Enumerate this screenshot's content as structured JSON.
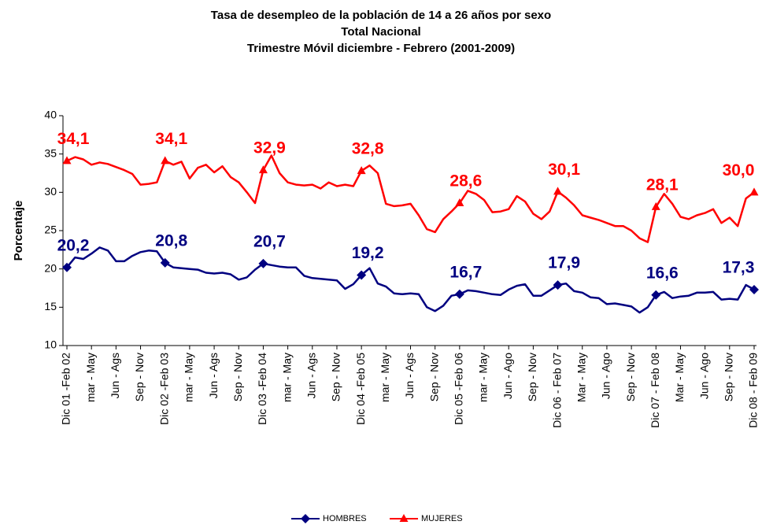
{
  "chart_data": {
    "type": "line",
    "title": "Tasa de desempleo de la población de 14 a 26 años por sexo",
    "subtitle": [
      "Total Nacional",
      "Trimestre Móvil diciembre - Febrero (2001-2009)"
    ],
    "y_label": "Porcentaje",
    "ylim": [
      10,
      40
    ],
    "yticks": [
      10,
      15,
      20,
      25,
      30,
      35,
      40
    ],
    "grid": false,
    "legend": "bottom",
    "categories": [
      "Dic 01 -Feb 02",
      null,
      null,
      "mar - May",
      null,
      null,
      "Jun - Ags",
      null,
      null,
      "Sep - Nov",
      null,
      null,
      "Dic 02 -Feb 03",
      null,
      null,
      "mar - May",
      null,
      null,
      "Jun - Ags",
      null,
      null,
      "Sep - Nov",
      null,
      null,
      "Dic 03 -Feb 04",
      null,
      null,
      "mar - May",
      null,
      null,
      "Jun - Ags",
      null,
      null,
      "Sep - Nov",
      null,
      null,
      "Dic 04 -Feb 05",
      null,
      null,
      "mar - May",
      null,
      null,
      "Jun - Ags",
      null,
      null,
      "Sep - Nov",
      null,
      null,
      "Dic 05 -Feb 06",
      null,
      null,
      "mar - May",
      null,
      null,
      "Jun - Ago",
      null,
      null,
      "Sep - Nov",
      null,
      null,
      "Dic 06 - Feb 07",
      null,
      null,
      "Mar - May",
      null,
      null,
      "Jun - Ago",
      null,
      null,
      "Sep - Nov",
      null,
      null,
      "Dic 07 - Feb 08",
      null,
      null,
      "Mar - May",
      null,
      null,
      "Jun - Ago",
      null,
      null,
      "Sep - Nov",
      null,
      null,
      "Dic 08 - Feb 09"
    ],
    "series": [
      {
        "name": "HOMBRES",
        "color": "#000080",
        "marker": "diamond",
        "values": [
          20.2,
          21.5,
          21.3,
          22.0,
          22.8,
          22.4,
          21.0,
          21.0,
          21.7,
          22.2,
          22.4,
          22.3,
          20.8,
          20.2,
          20.1,
          20.0,
          19.9,
          19.5,
          19.4,
          19.5,
          19.3,
          18.6,
          18.9,
          19.9,
          20.7,
          20.5,
          20.3,
          20.2,
          20.2,
          19.1,
          18.8,
          18.7,
          18.6,
          18.5,
          17.4,
          18.0,
          19.2,
          20.1,
          18.1,
          17.7,
          16.8,
          16.7,
          16.8,
          16.7,
          15.0,
          14.5,
          15.2,
          16.5,
          16.7,
          17.2,
          17.1,
          16.9,
          16.7,
          16.6,
          17.3,
          17.8,
          18.0,
          16.5,
          16.5,
          17.2,
          17.9,
          18.1,
          17.1,
          16.9,
          16.3,
          16.2,
          15.4,
          15.5,
          15.3,
          15.1,
          14.3,
          15.0,
          16.6,
          17.0,
          16.2,
          16.4,
          16.5,
          16.9,
          16.9,
          17.0,
          16.0,
          16.1,
          16.0,
          17.9,
          17.3
        ],
        "value_labels": [
          "20,2",
          null,
          null,
          null,
          null,
          null,
          null,
          null,
          null,
          null,
          null,
          null,
          "20,8",
          null,
          null,
          null,
          null,
          null,
          null,
          null,
          null,
          null,
          null,
          null,
          "20,7",
          null,
          null,
          null,
          null,
          null,
          null,
          null,
          null,
          null,
          null,
          null,
          "19,2",
          null,
          null,
          null,
          null,
          null,
          null,
          null,
          null,
          null,
          null,
          null,
          "16,7",
          null,
          null,
          null,
          null,
          null,
          null,
          null,
          null,
          null,
          null,
          null,
          "17,9",
          null,
          null,
          null,
          null,
          null,
          null,
          null,
          null,
          null,
          null,
          null,
          "16,6",
          null,
          null,
          null,
          null,
          null,
          null,
          null,
          null,
          null,
          null,
          null,
          "17,3"
        ]
      },
      {
        "name": "MUJERES",
        "color": "#ff0000",
        "marker": "triangle",
        "values": [
          34.1,
          34.6,
          34.3,
          33.6,
          33.9,
          33.7,
          33.3,
          32.9,
          32.4,
          31.0,
          31.1,
          31.3,
          34.1,
          33.6,
          34.0,
          31.8,
          33.2,
          33.6,
          32.6,
          33.4,
          32.0,
          31.3,
          30.0,
          28.6,
          32.9,
          34.8,
          32.5,
          31.3,
          31.0,
          30.9,
          31.0,
          30.5,
          31.3,
          30.8,
          31.0,
          30.8,
          32.8,
          33.5,
          32.5,
          28.5,
          28.2,
          28.3,
          28.5,
          27.0,
          25.2,
          24.8,
          26.5,
          27.5,
          28.6,
          30.2,
          29.8,
          29.0,
          27.4,
          27.5,
          27.8,
          29.5,
          28.8,
          27.2,
          26.5,
          27.5,
          30.1,
          29.3,
          28.3,
          27.0,
          26.7,
          26.4,
          26.0,
          25.6,
          25.6,
          25.0,
          24.0,
          23.5,
          28.1,
          29.8,
          28.5,
          26.8,
          26.5,
          27.0,
          27.3,
          27.8,
          26.0,
          26.7,
          25.6,
          29.2,
          30.0
        ],
        "value_labels": [
          "34,1",
          null,
          null,
          null,
          null,
          null,
          null,
          null,
          null,
          null,
          null,
          null,
          "34,1",
          null,
          null,
          null,
          null,
          null,
          null,
          null,
          null,
          null,
          null,
          null,
          "32,9",
          null,
          null,
          null,
          null,
          null,
          null,
          null,
          null,
          null,
          null,
          null,
          "32,8",
          null,
          null,
          null,
          null,
          null,
          null,
          null,
          null,
          null,
          null,
          null,
          "28,6",
          null,
          null,
          null,
          null,
          null,
          null,
          null,
          null,
          null,
          null,
          null,
          "30,1",
          null,
          null,
          null,
          null,
          null,
          null,
          null,
          null,
          null,
          null,
          null,
          "28,1",
          null,
          null,
          null,
          null,
          null,
          null,
          null,
          null,
          null,
          null,
          null,
          "30,0"
        ]
      }
    ]
  }
}
